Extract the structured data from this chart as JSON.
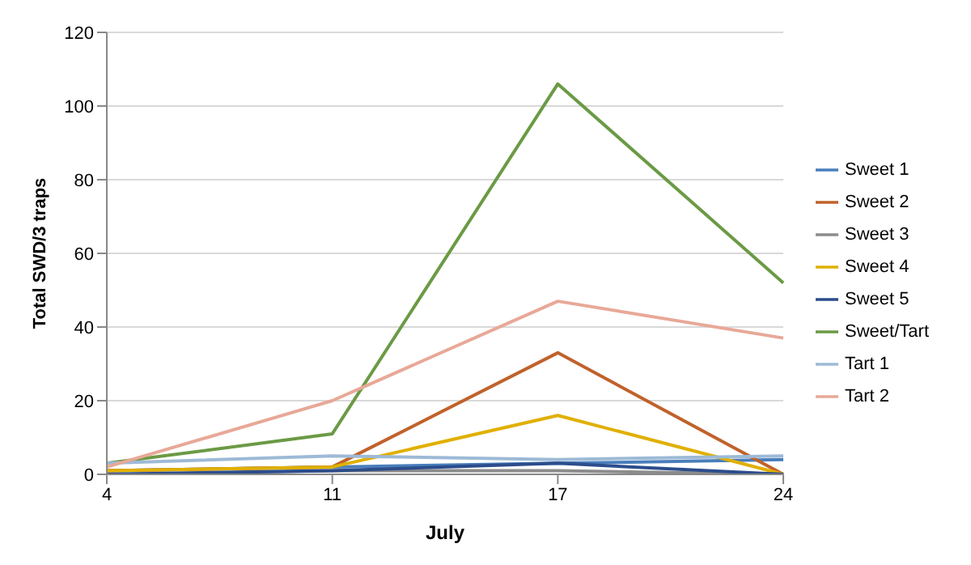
{
  "chart_data": {
    "type": "line",
    "xlabel": "July",
    "ylabel": "Total SWD/3 traps",
    "categories": [
      "4",
      "11",
      "17",
      "24"
    ],
    "ylim": [
      0,
      120
    ],
    "yticks": [
      0,
      20,
      40,
      60,
      80,
      100,
      120
    ],
    "grid": "y",
    "legend": "right",
    "marker": "none",
    "series": [
      {
        "name": "Sweet 1",
        "color": "#4a7ebb",
        "values": [
          1,
          2,
          3,
          4
        ]
      },
      {
        "name": "Sweet 2",
        "color": "#c0622b",
        "values": [
          1,
          2,
          33,
          0
        ]
      },
      {
        "name": "Sweet 3",
        "color": "#8c8c8c",
        "values": [
          0,
          1,
          1,
          0
        ]
      },
      {
        "name": "Sweet 4",
        "color": "#e0b000",
        "values": [
          1,
          2,
          16,
          0
        ]
      },
      {
        "name": "Sweet 5",
        "color": "#2c4d8c",
        "values": [
          0,
          1,
          3,
          0
        ]
      },
      {
        "name": "Sweet/Tart",
        "color": "#6b9a45",
        "values": [
          3,
          11,
          106,
          52
        ]
      },
      {
        "name": "Tart 1",
        "color": "#9dbad6",
        "values": [
          3,
          5,
          4,
          5
        ]
      },
      {
        "name": "Tart 2",
        "color": "#e8a898",
        "values": [
          2,
          20,
          47,
          37
        ]
      }
    ]
  }
}
